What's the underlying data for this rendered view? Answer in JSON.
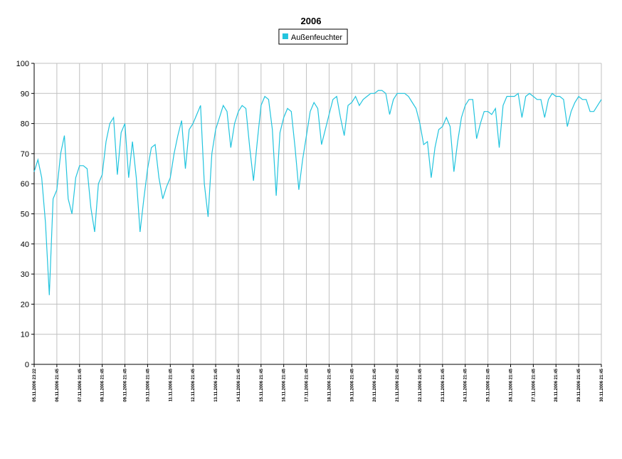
{
  "chart_data": {
    "type": "line",
    "title": "2006",
    "categories": [
      "05.11.2006 23:22",
      null,
      null,
      null,
      null,
      null,
      "06.11.2006 21:45",
      null,
      null,
      null,
      null,
      null,
      "07.11.2006 21:45",
      null,
      null,
      null,
      null,
      null,
      "08.11.2006 21:45",
      null,
      null,
      null,
      null,
      null,
      "09.11.2006 21:45",
      null,
      null,
      null,
      null,
      null,
      "10.11.2006 21:45",
      null,
      null,
      null,
      null,
      null,
      "11.11.2006 21:45",
      null,
      null,
      null,
      null,
      null,
      "12.11.2006 21:45",
      null,
      null,
      null,
      null,
      null,
      "13.11.2006 21:45",
      null,
      null,
      null,
      null,
      null,
      "14.11.2006 21:45",
      null,
      null,
      null,
      null,
      null,
      "15.11.2006 21:45",
      null,
      null,
      null,
      null,
      null,
      "16.11.2006 21:45",
      null,
      null,
      null,
      null,
      null,
      "17.11.2006 21:45",
      null,
      null,
      null,
      null,
      null,
      "18.11.2006 21:45",
      null,
      null,
      null,
      null,
      null,
      "19.11.2006 21:45",
      null,
      null,
      null,
      null,
      null,
      "20.11.2006 21:45",
      null,
      null,
      null,
      null,
      null,
      "21.11.2006 21:45",
      null,
      null,
      null,
      null,
      null,
      "22.11.2006 21:45",
      null,
      null,
      null,
      null,
      null,
      "23.11.2006 21:45",
      null,
      null,
      null,
      null,
      null,
      "24.11.2006 21:45",
      null,
      null,
      null,
      null,
      null,
      "25.11.2006 21:45",
      null,
      null,
      null,
      null,
      null,
      "26.11.2006 21:45",
      null,
      null,
      null,
      null,
      null,
      "27.11.2006 21:45",
      null,
      null,
      null,
      null,
      null,
      "28.11.2006 21:45",
      null,
      null,
      null,
      null,
      null,
      "29.11.2006 21:45",
      null,
      null,
      null,
      null,
      null,
      "30.11.2006 21:45"
    ],
    "series": [
      {
        "name": "Außenfeuchter",
        "color": "#22c4de",
        "values": [
          64,
          68,
          62,
          47,
          23,
          55,
          58,
          70,
          76,
          55,
          50,
          62,
          66,
          66,
          65,
          52,
          44,
          60,
          63,
          74,
          80,
          82,
          63,
          77,
          80,
          62,
          74,
          62,
          44,
          55,
          65,
          72,
          73,
          62,
          55,
          59,
          62,
          70,
          76,
          81,
          65,
          78,
          80,
          83,
          86,
          60,
          49,
          70,
          78,
          82,
          86,
          84,
          72,
          80,
          84,
          86,
          85,
          72,
          61,
          74,
          86,
          89,
          88,
          78,
          56,
          77,
          82,
          85,
          84,
          72,
          58,
          68,
          76,
          84,
          87,
          85,
          73,
          78,
          83,
          88,
          89,
          82,
          76,
          86,
          87,
          89,
          86,
          88,
          89,
          90,
          90,
          91,
          91,
          90,
          83,
          88,
          90,
          90,
          90,
          89,
          87,
          85,
          80,
          73,
          74,
          62,
          72,
          78,
          79,
          82,
          79,
          64,
          74,
          82,
          86,
          88,
          88,
          75,
          80,
          84,
          84,
          83,
          85,
          72,
          86,
          89,
          89,
          89,
          90,
          82,
          89,
          90,
          89,
          88,
          88,
          82,
          88,
          90,
          89,
          89,
          88,
          79,
          84,
          87,
          89,
          88,
          88,
          84,
          84,
          86,
          88
        ]
      }
    ],
    "ylim": [
      0,
      100
    ],
    "yticks": [
      0,
      10,
      20,
      30,
      40,
      50,
      60,
      70,
      80,
      90,
      100
    ],
    "grid": true
  }
}
